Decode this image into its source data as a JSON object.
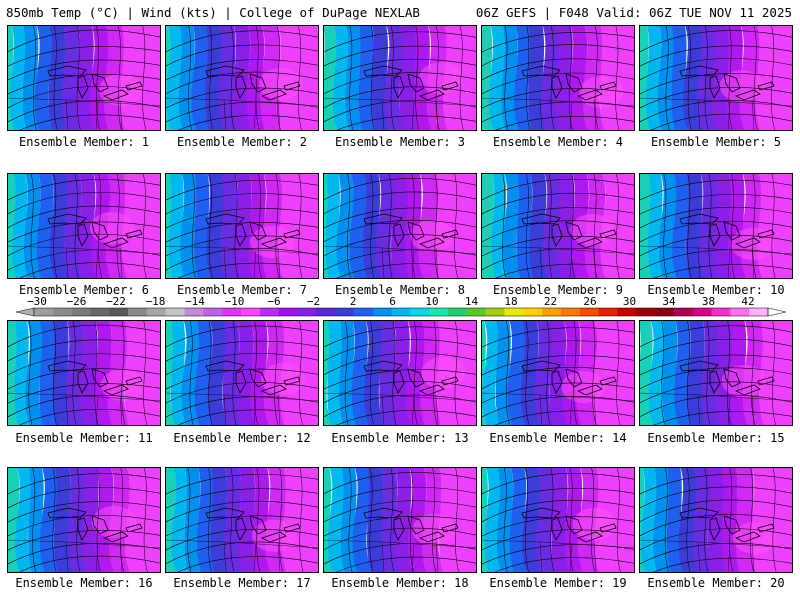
{
  "header": {
    "left": "850mb Temp (°C) | Wind (kts) | College of DuPage NEXLAB",
    "right": "06Z GEFS | F048 Valid: 06Z TUE NOV 11 2025"
  },
  "panels": [
    {
      "label": "Ensemble Member: 1"
    },
    {
      "label": "Ensemble Member: 2"
    },
    {
      "label": "Ensemble Member: 3"
    },
    {
      "label": "Ensemble Member: 4"
    },
    {
      "label": "Ensemble Member: 5"
    },
    {
      "label": "Ensemble Member: 6"
    },
    {
      "label": "Ensemble Member: 7"
    },
    {
      "label": "Ensemble Member: 8"
    },
    {
      "label": "Ensemble Member: 9"
    },
    {
      "label": "Ensemble Member: 10"
    },
    {
      "label": "Ensemble Member: 11"
    },
    {
      "label": "Ensemble Member: 12"
    },
    {
      "label": "Ensemble Member: 13"
    },
    {
      "label": "Ensemble Member: 14"
    },
    {
      "label": "Ensemble Member: 15"
    },
    {
      "label": "Ensemble Member: 16"
    },
    {
      "label": "Ensemble Member: 17"
    },
    {
      "label": "Ensemble Member: 18"
    },
    {
      "label": "Ensemble Member: 19"
    },
    {
      "label": "Ensemble Member: 20"
    }
  ],
  "colorbar": {
    "ticks": [
      "-30",
      "-26",
      "-22",
      "-18",
      "-14",
      "-10",
      "-6",
      "-2",
      "2",
      "6",
      "10",
      "14",
      "18",
      "22",
      "26",
      "30",
      "34",
      "38",
      "42"
    ],
    "colors": [
      "#9e9e9e",
      "#8c8c8c",
      "#7a7a7a",
      "#696969",
      "#585858",
      "#8a8a8a",
      "#a6a6a6",
      "#c4c4c4",
      "#c48ad8",
      "#c060e8",
      "#e030f0",
      "#ff44ff",
      "#c028ff",
      "#a010f0",
      "#8420e8",
      "#5a28d8",
      "#3c3cd8",
      "#2060f0",
      "#0090f0",
      "#00b8f0",
      "#00d8e8",
      "#18e8b0",
      "#20d070",
      "#58c828",
      "#a0d010",
      "#e8e800",
      "#ffd000",
      "#ffa000",
      "#ff7800",
      "#ff4800",
      "#e82000",
      "#c80000",
      "#a00000",
      "#8a0010",
      "#b00050",
      "#d80088",
      "#f030c8",
      "#ff70f0",
      "#ffb0ff"
    ]
  }
}
